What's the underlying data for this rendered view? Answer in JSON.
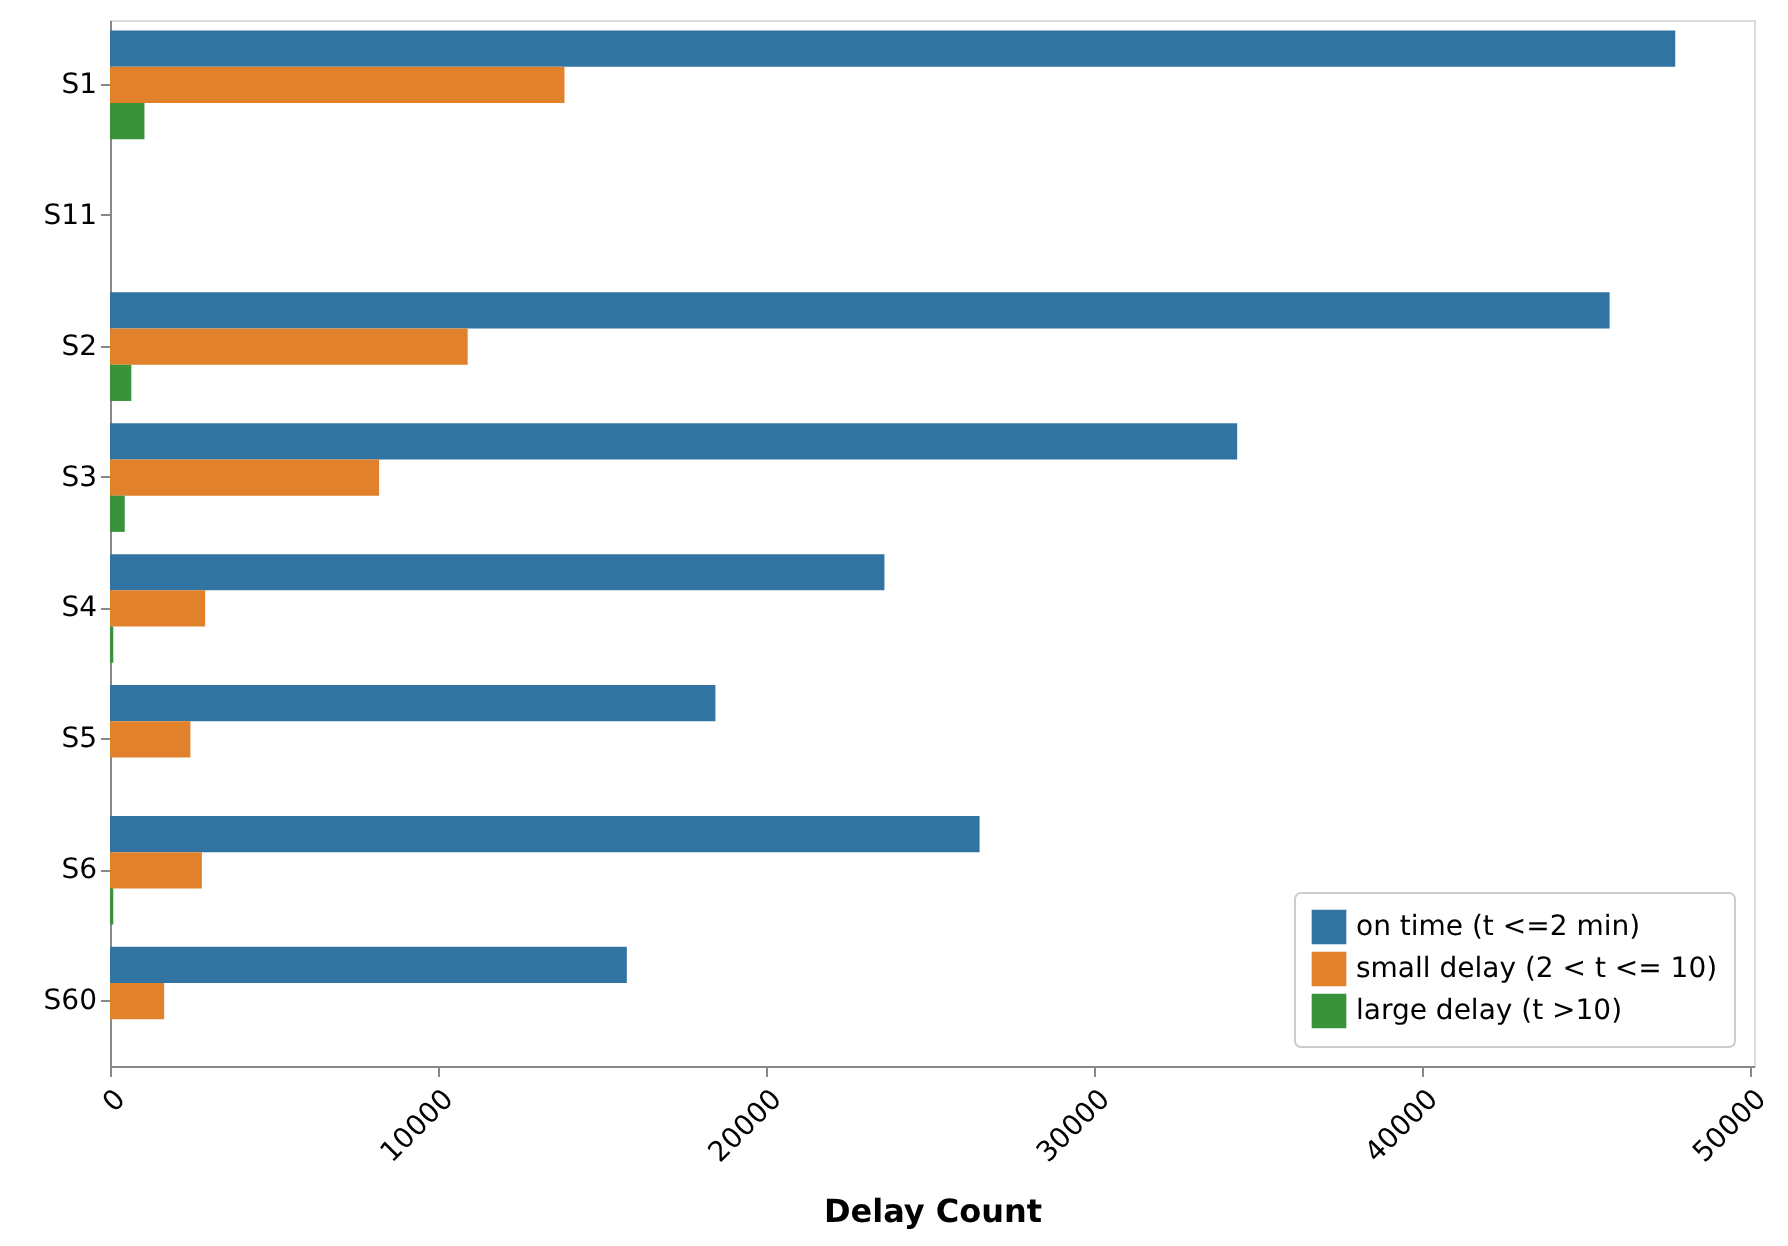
{
  "chart_data": {
    "type": "bar",
    "orientation": "horizontal",
    "xlabel": "Delay Count",
    "categories": [
      "S1",
      "S11",
      "S2",
      "S3",
      "S4",
      "S5",
      "S6",
      "S60"
    ],
    "series": [
      {
        "name": "on time (t <=2 min)",
        "color": "#3274a1",
        "values": [
          47700,
          0,
          45700,
          34350,
          23600,
          18450,
          26500,
          15750
        ]
      },
      {
        "name": "small delay (2 < t <= 10)",
        "color": "#e1812c",
        "values": [
          13850,
          0,
          10900,
          8200,
          2900,
          2450,
          2800,
          1650
        ]
      },
      {
        "name": "large delay (t >10)",
        "color": "#3a923a",
        "values": [
          1050,
          0,
          650,
          450,
          100,
          0,
          100,
          0
        ]
      }
    ],
    "xlim": [
      0,
      50100
    ],
    "xticks": [
      0,
      10000,
      20000,
      30000,
      40000,
      50000
    ],
    "grid": false,
    "legend": "bottom right"
  }
}
